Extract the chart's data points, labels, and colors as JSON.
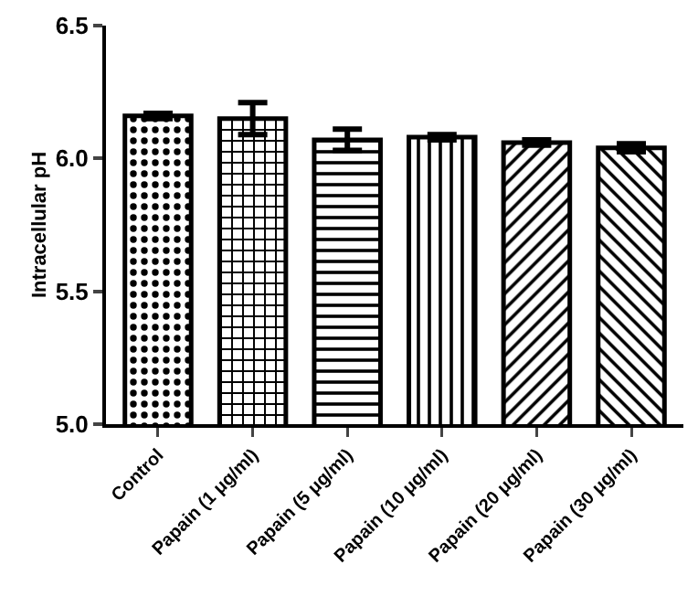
{
  "chart_data": {
    "type": "bar",
    "ylabel": "Intracellular pH",
    "categories": [
      "Control",
      "Papain (1 μg/ml)",
      "Papain (5 μg/ml)",
      "Papain (10 μg/ml)",
      "Papain (20 μg/ml)",
      "Papain (30 μg/ml)"
    ],
    "values": [
      6.16,
      6.15,
      6.07,
      6.08,
      6.06,
      6.04
    ],
    "errors": [
      0.01,
      0.06,
      0.04,
      0.01,
      0.01,
      0.015
    ],
    "color": "#000000",
    "ylim": [
      5.0,
      6.5
    ],
    "yticks": [
      {
        "value": 5.0,
        "label": "5.0"
      },
      {
        "value": 5.5,
        "label": "5.5"
      },
      {
        "value": 6.0,
        "label": "6.0"
      },
      {
        "value": 6.5,
        "label": "6.5"
      }
    ],
    "grid": false
  }
}
